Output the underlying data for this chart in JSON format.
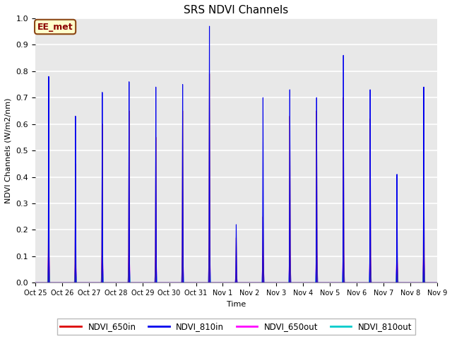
{
  "title": "SRS NDVI Channels",
  "ylabel": "NDVI Channels (W/m2/nm)",
  "xlabel": "Time",
  "ylim": [
    0.0,
    1.0
  ],
  "bg_color": "#e8e8e8",
  "annotation_text": "EE_met",
  "annotation_bg": "#ffffcc",
  "annotation_border": "#8b4513",
  "annotation_text_color": "#8b0000",
  "colors": {
    "NDVI_650in": "#dd0000",
    "NDVI_810in": "#0000ee",
    "NDVI_650out": "#ff00ff",
    "NDVI_810out": "#00cccc"
  },
  "x_tick_labels": [
    "Oct 25",
    "Oct 26",
    "Oct 27",
    "Oct 28",
    "Oct 29",
    "Oct 30",
    "Oct 31",
    "Nov 1",
    "Nov 2",
    "Nov 3",
    "Nov 4",
    "Nov 5",
    "Nov 6",
    "Nov 7",
    "Nov 8",
    "Nov 9"
  ],
  "peak_810in": [
    0.78,
    0.63,
    0.72,
    0.76,
    0.74,
    0.75,
    0.97,
    0.22,
    0.7,
    0.73,
    0.7,
    0.86,
    0.73,
    0.41,
    0.74
  ],
  "peak_650in": [
    0.4,
    0.45,
    0.6,
    0.65,
    0.55,
    0.65,
    0.79,
    0.17,
    0.25,
    0.63,
    0.65,
    0.7,
    0.62,
    0.23,
    0.62
  ],
  "peak_650out": [
    0.15,
    0.09,
    0.13,
    0.13,
    0.12,
    0.13,
    0.16,
    0.04,
    0.11,
    0.13,
    0.14,
    0.14,
    0.12,
    0.11,
    0.13
  ],
  "peak_810out": [
    0.1,
    0.07,
    0.09,
    0.09,
    0.09,
    0.1,
    0.13,
    0.03,
    0.09,
    0.1,
    0.1,
    0.1,
    0.09,
    0.08,
    0.1
  ],
  "figsize": [
    6.4,
    4.8
  ],
  "dpi": 100
}
